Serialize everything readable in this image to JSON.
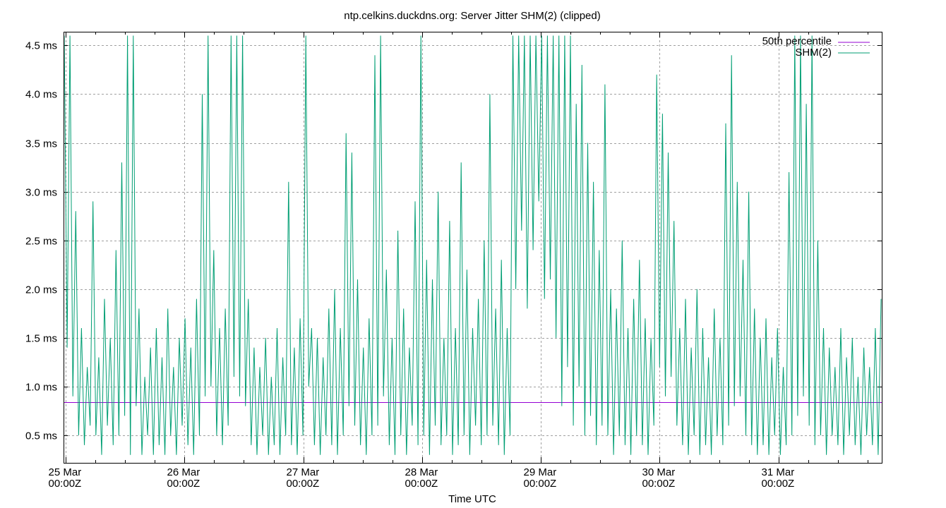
{
  "chart_data": {
    "type": "line",
    "title": "ntp.celkins.duckdns.org: Server Jitter SHM(2) (clipped)",
    "xlabel": "Time UTC",
    "ylabel": "",
    "ylim": [
      0.218,
      4.64
    ],
    "y_ticks": [
      {
        "value": 0.5,
        "label": "0.5 ms"
      },
      {
        "value": 1.0,
        "label": "1.0 ms"
      },
      {
        "value": 1.5,
        "label": "1.5 ms"
      },
      {
        "value": 2.0,
        "label": "2.0 ms"
      },
      {
        "value": 2.5,
        "label": "2.5 ms"
      },
      {
        "value": 3.0,
        "label": "3.0 ms"
      },
      {
        "value": 3.5,
        "label": "3.5 ms"
      },
      {
        "value": 4.0,
        "label": "4.0 ms"
      },
      {
        "value": 4.5,
        "label": "4.5 ms"
      }
    ],
    "x_range_days": [
      -0.018,
      6.869
    ],
    "x_ticks": [
      {
        "day": 0,
        "line1": "25 Mar",
        "line2": "00:00Z"
      },
      {
        "day": 1,
        "line1": "26 Mar",
        "line2": "00:00Z"
      },
      {
        "day": 2,
        "line1": "27 Mar",
        "line2": "00:00Z"
      },
      {
        "day": 3,
        "line1": "28 Mar",
        "line2": "00:00Z"
      },
      {
        "day": 4,
        "line1": "29 Mar",
        "line2": "00:00Z"
      },
      {
        "day": 5,
        "line1": "30 Mar",
        "line2": "00:00Z"
      },
      {
        "day": 6,
        "line1": "31 Mar",
        "line2": "00:00Z"
      }
    ],
    "grid": true,
    "legend_position": "top-right",
    "legend": [
      {
        "label": "50th percentile",
        "color": "#9400d3"
      },
      {
        "label": "SHM(2)",
        "color": "#009e73"
      }
    ],
    "series": [
      {
        "name": "50th percentile",
        "color": "#9400d3",
        "constant": 0.84
      },
      {
        "name": "SHM(2)",
        "color": "#009e73",
        "sample_step_days": 0.02377,
        "values": [
          4.6,
          1.4,
          4.6,
          0.9,
          2.8,
          0.5,
          1.6,
          0.4,
          1.2,
          0.6,
          2.9,
          0.5,
          1.3,
          0.3,
          1.9,
          0.6,
          1.5,
          0.4,
          2.4,
          0.5,
          3.3,
          0.7,
          4.6,
          0.3,
          4.6,
          0.8,
          1.8,
          0.3,
          1.1,
          0.5,
          1.4,
          0.3,
          1.6,
          0.4,
          1.3,
          0.3,
          1.8,
          0.5,
          1.2,
          0.3,
          1.5,
          0.6,
          1.7,
          0.4,
          1.4,
          0.3,
          1.9,
          0.5,
          4.0,
          0.9,
          4.6,
          1.0,
          2.4,
          0.5,
          1.6,
          0.4,
          1.8,
          0.6,
          4.6,
          1.1,
          4.6,
          0.9,
          4.6,
          0.8,
          1.9,
          0.4,
          1.4,
          0.3,
          1.2,
          0.5,
          1.5,
          0.3,
          1.1,
          0.4,
          1.6,
          0.3,
          1.3,
          0.5,
          3.1,
          0.4,
          1.4,
          0.3,
          1.7,
          0.5,
          4.6,
          1.0,
          1.6,
          0.4,
          1.5,
          0.3,
          1.3,
          0.5,
          1.8,
          0.4,
          2.0,
          0.3,
          1.6,
          0.5,
          3.6,
          0.8,
          3.4,
          0.6,
          2.1,
          0.4,
          1.4,
          0.3,
          1.7,
          0.5,
          4.4,
          0.6,
          4.6,
          0.9,
          2.2,
          0.4,
          1.5,
          0.3,
          2.6,
          0.5,
          1.8,
          0.3,
          1.4,
          0.6,
          2.9,
          0.4,
          4.6,
          0.5,
          2.3,
          0.3,
          2.1,
          0.6,
          3.0,
          0.4,
          1.5,
          0.5,
          2.7,
          0.3,
          1.6,
          0.4,
          3.3,
          0.5,
          2.2,
          0.3,
          1.6,
          0.6,
          1.9,
          0.4,
          2.5,
          0.5,
          4.0,
          0.6,
          1.8,
          0.4,
          2.3,
          0.3,
          1.6,
          0.5,
          4.6,
          2.0,
          4.6,
          2.6,
          4.6,
          1.8,
          4.6,
          2.4,
          4.6,
          2.9,
          4.6,
          1.9,
          4.6,
          2.1,
          4.6,
          1.5,
          4.6,
          0.8,
          4.6,
          1.2,
          4.6,
          0.6,
          3.9,
          1.0,
          4.3,
          0.5,
          3.5,
          0.7,
          3.1,
          0.4,
          2.4,
          0.6,
          4.1,
          0.5,
          2.0,
          0.3,
          1.8,
          0.5,
          2.5,
          0.4,
          1.6,
          0.3,
          1.9,
          0.5,
          2.3,
          0.4,
          1.7,
          0.3,
          1.5,
          0.6,
          4.2,
          1.2,
          3.8,
          0.9,
          3.4,
          1.1,
          2.7,
          0.6,
          1.6,
          0.4,
          1.9,
          0.3,
          1.4,
          0.5,
          2.0,
          0.3,
          1.6,
          0.4,
          1.3,
          0.3,
          1.8,
          0.5,
          1.5,
          0.4,
          3.7,
          0.6,
          4.4,
          0.8,
          3.1,
          0.9,
          2.3,
          0.5,
          3.0,
          0.4,
          1.8,
          0.3,
          1.5,
          0.4,
          1.7,
          0.3,
          1.3,
          0.5,
          1.6,
          0.3,
          1.2,
          0.4,
          3.2,
          0.5,
          4.6,
          0.7,
          4.6,
          0.9,
          3.9,
          0.6,
          4.6,
          0.4,
          2.5,
          0.5,
          1.6,
          0.3,
          1.4,
          0.5,
          1.2,
          0.4,
          1.6,
          0.3,
          1.3,
          0.5,
          1.5,
          0.4,
          1.1,
          0.3,
          1.4,
          0.5,
          1.2,
          0.4,
          1.6,
          0.3,
          1.9
        ]
      }
    ]
  }
}
